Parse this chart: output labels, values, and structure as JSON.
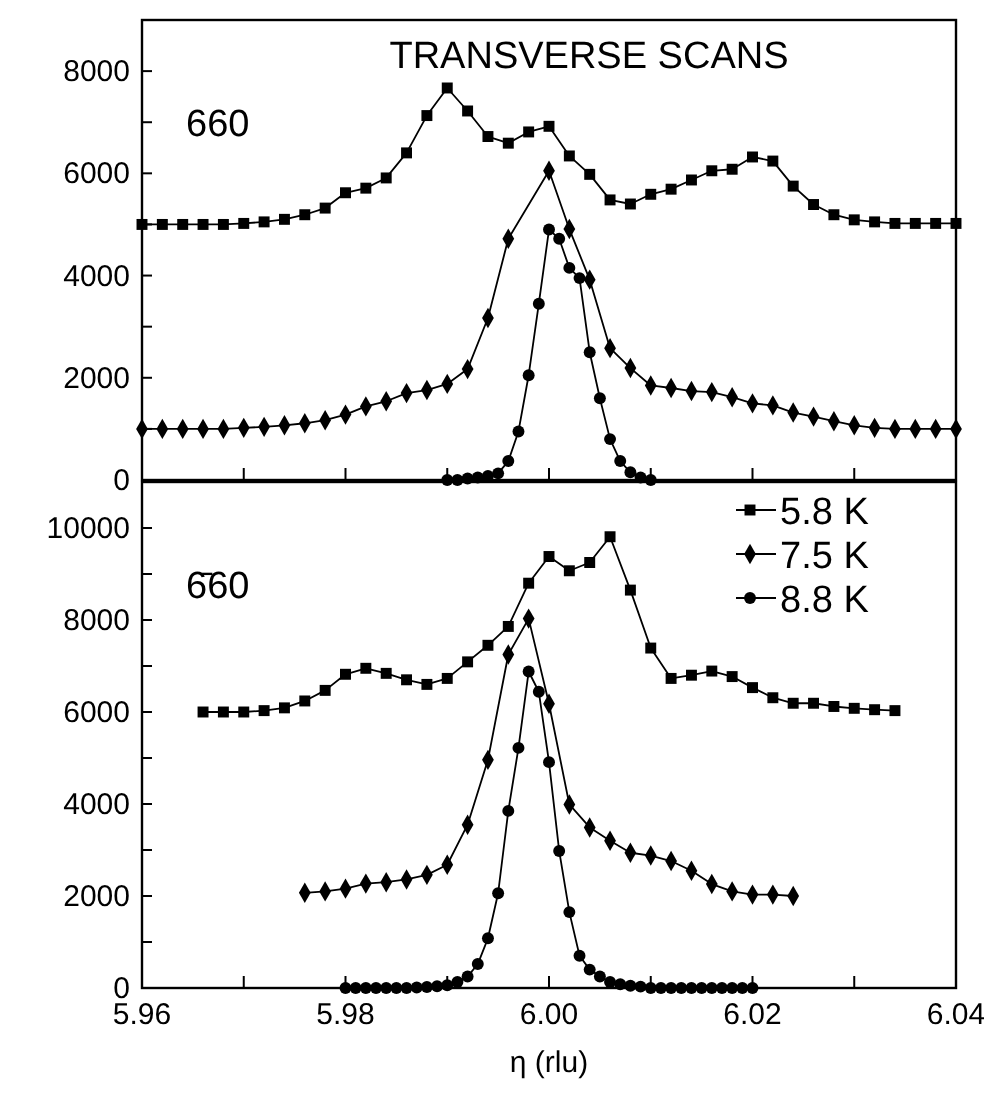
{
  "chart_data": [
    {
      "type": "line",
      "title": "TRANSVERSE SCANS",
      "annotations": [
        "660"
      ],
      "xlim": [
        5.96,
        6.04
      ],
      "xticks": [
        {
          "value": 5.97,
          "label": null
        },
        {
          "value": 5.98,
          "label": null
        },
        {
          "value": 5.99,
          "label": null
        },
        {
          "value": 6,
          "label": null
        },
        {
          "value": 6.01,
          "label": null
        },
        {
          "value": 6.02,
          "label": null
        },
        {
          "value": 6.03,
          "label": null
        }
      ],
      "ylim": [
        0,
        9000
      ],
      "yticks": [
        0,
        {
          "value": 1000,
          "label": null
        },
        2000,
        {
          "value": 3000,
          "label": null
        },
        4000,
        {
          "value": 5000,
          "label": null
        },
        6000,
        {
          "value": 7000,
          "label": null
        },
        8000
      ],
      "tick_labels": "y",
      "grid": false,
      "legend": false,
      "series": [
        {
          "color": "#000000",
          "marker": "square",
          "x": [
            5.96,
            5.962,
            5.964,
            5.966,
            5.968,
            5.97,
            5.972,
            5.974,
            5.976,
            5.978,
            5.98,
            5.982,
            5.984,
            5.986,
            5.988,
            5.99,
            5.992,
            5.994,
            5.996,
            5.998,
            6,
            6.002,
            6.004,
            6.006,
            6.008,
            6.01,
            6.012,
            6.014,
            6.016,
            6.018,
            6.02,
            6.022,
            6.024,
            6.026,
            6.028,
            6.03,
            6.032,
            6.034,
            6.036,
            6.038,
            6.04
          ],
          "values": [
            5000,
            5000,
            5000,
            5000,
            5000,
            5020,
            5050,
            5100,
            5190,
            5320,
            5620,
            5710,
            5910,
            6400,
            7130,
            7670,
            7220,
            6720,
            6590,
            6810,
            6920,
            6340,
            5980,
            5480,
            5400,
            5590,
            5690,
            5870,
            6050,
            6080,
            6320,
            6240,
            5750,
            5390,
            5190,
            5090,
            5050,
            5020,
            5020,
            5020,
            5020
          ]
        },
        {
          "color": "#000000",
          "marker": "diamond",
          "x": [
            5.96,
            5.962,
            5.964,
            5.966,
            5.968,
            5.97,
            5.972,
            5.974,
            5.976,
            5.978,
            5.98,
            5.982,
            5.984,
            5.986,
            5.988,
            5.99,
            5.992,
            5.994,
            5.996,
            6,
            6.002,
            6.004,
            6.006,
            6.008,
            6.01,
            6.012,
            6.014,
            6.016,
            6.018,
            6.02,
            6.022,
            6.024,
            6.026,
            6.028,
            6.03,
            6.032,
            6.034,
            6.036,
            6.038,
            6.04
          ],
          "values": [
            1000,
            1000,
            1000,
            1000,
            1000,
            1020,
            1040,
            1070,
            1110,
            1170,
            1280,
            1440,
            1540,
            1700,
            1760,
            1880,
            2170,
            3170,
            4720,
            6050,
            4910,
            3920,
            2580,
            2190,
            1850,
            1800,
            1740,
            1720,
            1620,
            1500,
            1460,
            1320,
            1240,
            1150,
            1070,
            1020,
            1000,
            1000,
            1000,
            1000
          ]
        },
        {
          "color": "#000000",
          "marker": "circle",
          "x": [
            5.99,
            5.991,
            5.992,
            5.993,
            5.994,
            5.995,
            5.996,
            5.997,
            5.998,
            5.999,
            6,
            6.001,
            6.002,
            6.003,
            6.004,
            6.005,
            6.006,
            6.007,
            6.008,
            6.009,
            6.01
          ],
          "values": [
            0,
            0,
            30,
            50,
            80,
            130,
            370,
            950,
            2050,
            3450,
            4900,
            4720,
            4150,
            3950,
            2500,
            1600,
            800,
            370,
            150,
            50,
            0
          ]
        }
      ]
    },
    {
      "type": "line",
      "annotations": [
        "6̄60"
      ],
      "xlabel": "η (rlu)",
      "xlim": [
        5.96,
        6.04
      ],
      "xticks": [
        5.96,
        {
          "value": 5.97,
          "label": null
        },
        5.98,
        {
          "value": 5.99,
          "label": null
        },
        {
          "value": 6,
          "label": "6.00"
        },
        {
          "value": 6.01,
          "label": null
        },
        6.02,
        {
          "value": 6.03,
          "label": null
        },
        6.04
      ],
      "ylim": [
        0,
        11000
      ],
      "yticks": [
        0,
        {
          "value": 1000,
          "label": null
        },
        2000,
        {
          "value": 3000,
          "label": null
        },
        4000,
        {
          "value": 5000,
          "label": null
        },
        6000,
        {
          "value": 7000,
          "label": null
        },
        8000,
        {
          "value": 9000,
          "label": null
        },
        10000
      ],
      "grid": false,
      "legend": "top right",
      "series": [
        {
          "name": "5.8 K",
          "color": "#000000",
          "marker": "square",
          "x": [
            5.966,
            5.968,
            5.97,
            5.972,
            5.974,
            5.976,
            5.978,
            5.98,
            5.982,
            5.984,
            5.986,
            5.988,
            5.99,
            5.992,
            5.994,
            5.996,
            5.998,
            6,
            6.002,
            6.004,
            6.006,
            6.008,
            6.01,
            6.012,
            6.014,
            6.016,
            6.018,
            6.02,
            6.022,
            6.024,
            6.026,
            6.028,
            6.03,
            6.032,
            6.034
          ],
          "values": [
            6000,
            6000,
            6000,
            6030,
            6090,
            6240,
            6470,
            6820,
            6950,
            6840,
            6700,
            6600,
            6730,
            7090,
            7450,
            7860,
            8800,
            9380,
            9070,
            9250,
            9810,
            8650,
            7390,
            6730,
            6800,
            6890,
            6770,
            6530,
            6310,
            6190,
            6190,
            6120,
            6080,
            6050,
            6030
          ]
        },
        {
          "name": "7.5 K",
          "color": "#000000",
          "marker": "diamond",
          "x": [
            5.976,
            5.978,
            5.98,
            5.982,
            5.984,
            5.986,
            5.988,
            5.99,
            5.992,
            5.994,
            5.996,
            5.998,
            6,
            6.002,
            6.004,
            6.006,
            6.008,
            6.01,
            6.012,
            6.014,
            6.016,
            6.018,
            6.02,
            6.022,
            6.024
          ],
          "values": [
            2070,
            2100,
            2160,
            2270,
            2300,
            2360,
            2460,
            2680,
            3550,
            4960,
            7250,
            8030,
            6180,
            3990,
            3490,
            3200,
            2940,
            2880,
            2760,
            2550,
            2260,
            2100,
            2030,
            2030,
            2000
          ]
        },
        {
          "name": "8.8 K",
          "color": "#000000",
          "marker": "circle",
          "x": [
            5.98,
            5.981,
            5.982,
            5.983,
            5.984,
            5.985,
            5.986,
            5.987,
            5.988,
            5.989,
            5.99,
            5.991,
            5.992,
            5.993,
            5.994,
            5.995,
            5.996,
            5.997,
            5.998,
            5.999,
            6,
            6.001,
            6.002,
            6.003,
            6.004,
            6.005,
            6.006,
            6.007,
            6.008,
            6.009,
            6.01,
            6.011,
            6.012,
            6.013,
            6.014,
            6.015,
            6.016,
            6.017,
            6.018,
            6.019,
            6.02
          ],
          "values": [
            0,
            0,
            0,
            0,
            0,
            0,
            0,
            10,
            20,
            40,
            60,
            130,
            250,
            520,
            1080,
            2060,
            3850,
            5220,
            6880,
            6440,
            4910,
            2980,
            1650,
            700,
            400,
            250,
            130,
            80,
            50,
            30,
            0,
            0,
            0,
            0,
            0,
            0,
            0,
            0,
            0,
            0,
            0
          ]
        }
      ]
    }
  ]
}
